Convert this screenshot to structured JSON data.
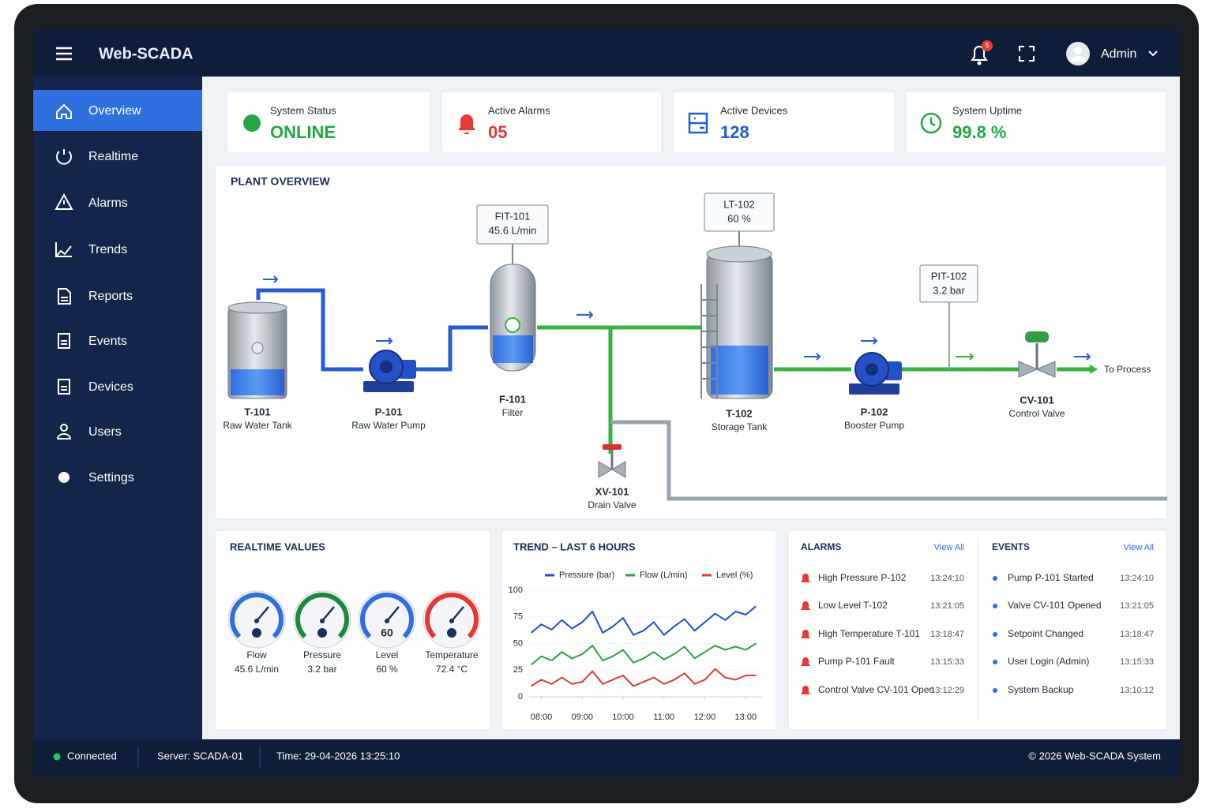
{
  "header": {
    "brand": "Web-SCADA",
    "notification_count": "5",
    "user": "Admin"
  },
  "nav": {
    "items": [
      "Overview",
      "Realtime",
      "Alarms",
      "Trends",
      "Reports",
      "Events",
      "Devices",
      "Users",
      "Settings"
    ],
    "active": "Overview"
  },
  "status_cards": [
    {
      "label": "System Status",
      "value": "ONLINE",
      "color": "#22a745"
    },
    {
      "label": "Active Alarms",
      "value": "05",
      "color": "#e53935"
    },
    {
      "label": "Active Devices",
      "value": "128",
      "color": "#1f5fd0"
    },
    {
      "label": "System Uptime",
      "value": "99.8 %",
      "color": "#22a745"
    }
  ],
  "plant": {
    "title": "PLANT OVERVIEW",
    "equipment": [
      {
        "tag": "T-101",
        "name": "Raw Water Tank"
      },
      {
        "tag": "P-101",
        "name": "Raw Water Pump"
      },
      {
        "tag": "F-101",
        "name": "Filter"
      },
      {
        "tag": "XV-101",
        "name": "Drain Valve"
      },
      {
        "tag": "T-102",
        "name": "Storage Tank"
      },
      {
        "tag": "P-102",
        "name": "Booster Pump"
      },
      {
        "tag": "CV-101",
        "name": "Control Valve"
      }
    ],
    "instruments": [
      {
        "tag": "FIT-101",
        "reading": "45.6 L/min"
      },
      {
        "tag": "LT-102",
        "reading": "60 %"
      },
      {
        "tag": "PIT-102",
        "reading": "3.2 bar"
      }
    ],
    "outlet": "To Process"
  },
  "realtime": {
    "title": "REALTIME VALUES",
    "gauges": [
      {
        "label": "Flow",
        "reading": "45.6 L/min",
        "color": "#2f6fe0"
      },
      {
        "label": "Pressure",
        "reading": "3.2 bar",
        "color": "#1e8a3c"
      },
      {
        "label": "Level",
        "reading": "60 %",
        "dial": "60",
        "color": "#2f6fe0"
      },
      {
        "label": "Temperature",
        "reading": "72.4 °C",
        "color": "#e53935"
      }
    ]
  },
  "trend": {
    "type": "line",
    "title": "TREND – LAST 6 HOURS",
    "x": [
      7.75,
      8,
      8.25,
      8.5,
      8.75,
      9,
      9.25,
      9.5,
      9.75,
      10,
      10.25,
      10.5,
      10.75,
      11,
      11.25,
      11.5,
      11.75,
      12,
      12.25,
      12.5,
      12.75,
      13,
      13.25
    ],
    "series": [
      {
        "name": "Pressure (bar)",
        "color": "#1f4fd8",
        "values": [
          60,
          68,
          63,
          72,
          64,
          70,
          80,
          60,
          66,
          74,
          58,
          62,
          70,
          58,
          66,
          73,
          62,
          70,
          78,
          72,
          80,
          77,
          85
        ]
      },
      {
        "name": "Flow (L/min)",
        "color": "#2ea043",
        "values": [
          30,
          38,
          34,
          42,
          36,
          40,
          48,
          34,
          38,
          44,
          32,
          36,
          42,
          35,
          40,
          47,
          36,
          42,
          48,
          44,
          47,
          44,
          50
        ]
      },
      {
        "name": "Level (%)",
        "color": "#e53935",
        "values": [
          10,
          16,
          12,
          18,
          12,
          14,
          24,
          12,
          16,
          20,
          10,
          14,
          18,
          12,
          16,
          22,
          12,
          16,
          26,
          18,
          16,
          20,
          20
        ]
      }
    ],
    "xlim": [
      7.7,
      13.4
    ],
    "xticks": [
      {
        "value": 8,
        "label": "08:00"
      },
      {
        "value": 9,
        "label": "09:00"
      },
      {
        "value": 10,
        "label": "10:00"
      },
      {
        "value": 11,
        "label": "11:00"
      },
      {
        "value": 12,
        "label": "12:00"
      },
      {
        "value": 13,
        "label": "13:00"
      }
    ],
    "ylim": [
      0,
      100
    ],
    "yticks": [
      0,
      25,
      50,
      75,
      100
    ],
    "grid": true
  },
  "alarms": {
    "title": "ALARMS",
    "link": "View All",
    "rows": [
      {
        "text": "High Pressure P-102",
        "time": "13:24:10"
      },
      {
        "text": "Low Level T-102",
        "time": "13:21:05"
      },
      {
        "text": "High Temperature T-101",
        "time": "13:18:47"
      },
      {
        "text": "Pump P-101 Fault",
        "time": "13:15:33"
      },
      {
        "text": "Control Valve CV-101 Open",
        "time": "13:12:29"
      }
    ]
  },
  "events": {
    "title": "EVENTS",
    "link": "View All",
    "rows": [
      {
        "text": "Pump P-101 Started",
        "time": "13:24:10"
      },
      {
        "text": "Valve CV-101 Opened",
        "time": "13:21:05"
      },
      {
        "text": "Setpoint Changed",
        "time": "13:18:47"
      },
      {
        "text": "User Login (Admin)",
        "time": "13:15:33"
      },
      {
        "text": "System Backup",
        "time": "13:10:12"
      }
    ]
  },
  "footer": {
    "connection": "Connected",
    "server": "Server: SCADA-01",
    "time": "Time: 29-04-2026 13:25:10",
    "copyright": "© 2026 Web-SCADA System"
  }
}
